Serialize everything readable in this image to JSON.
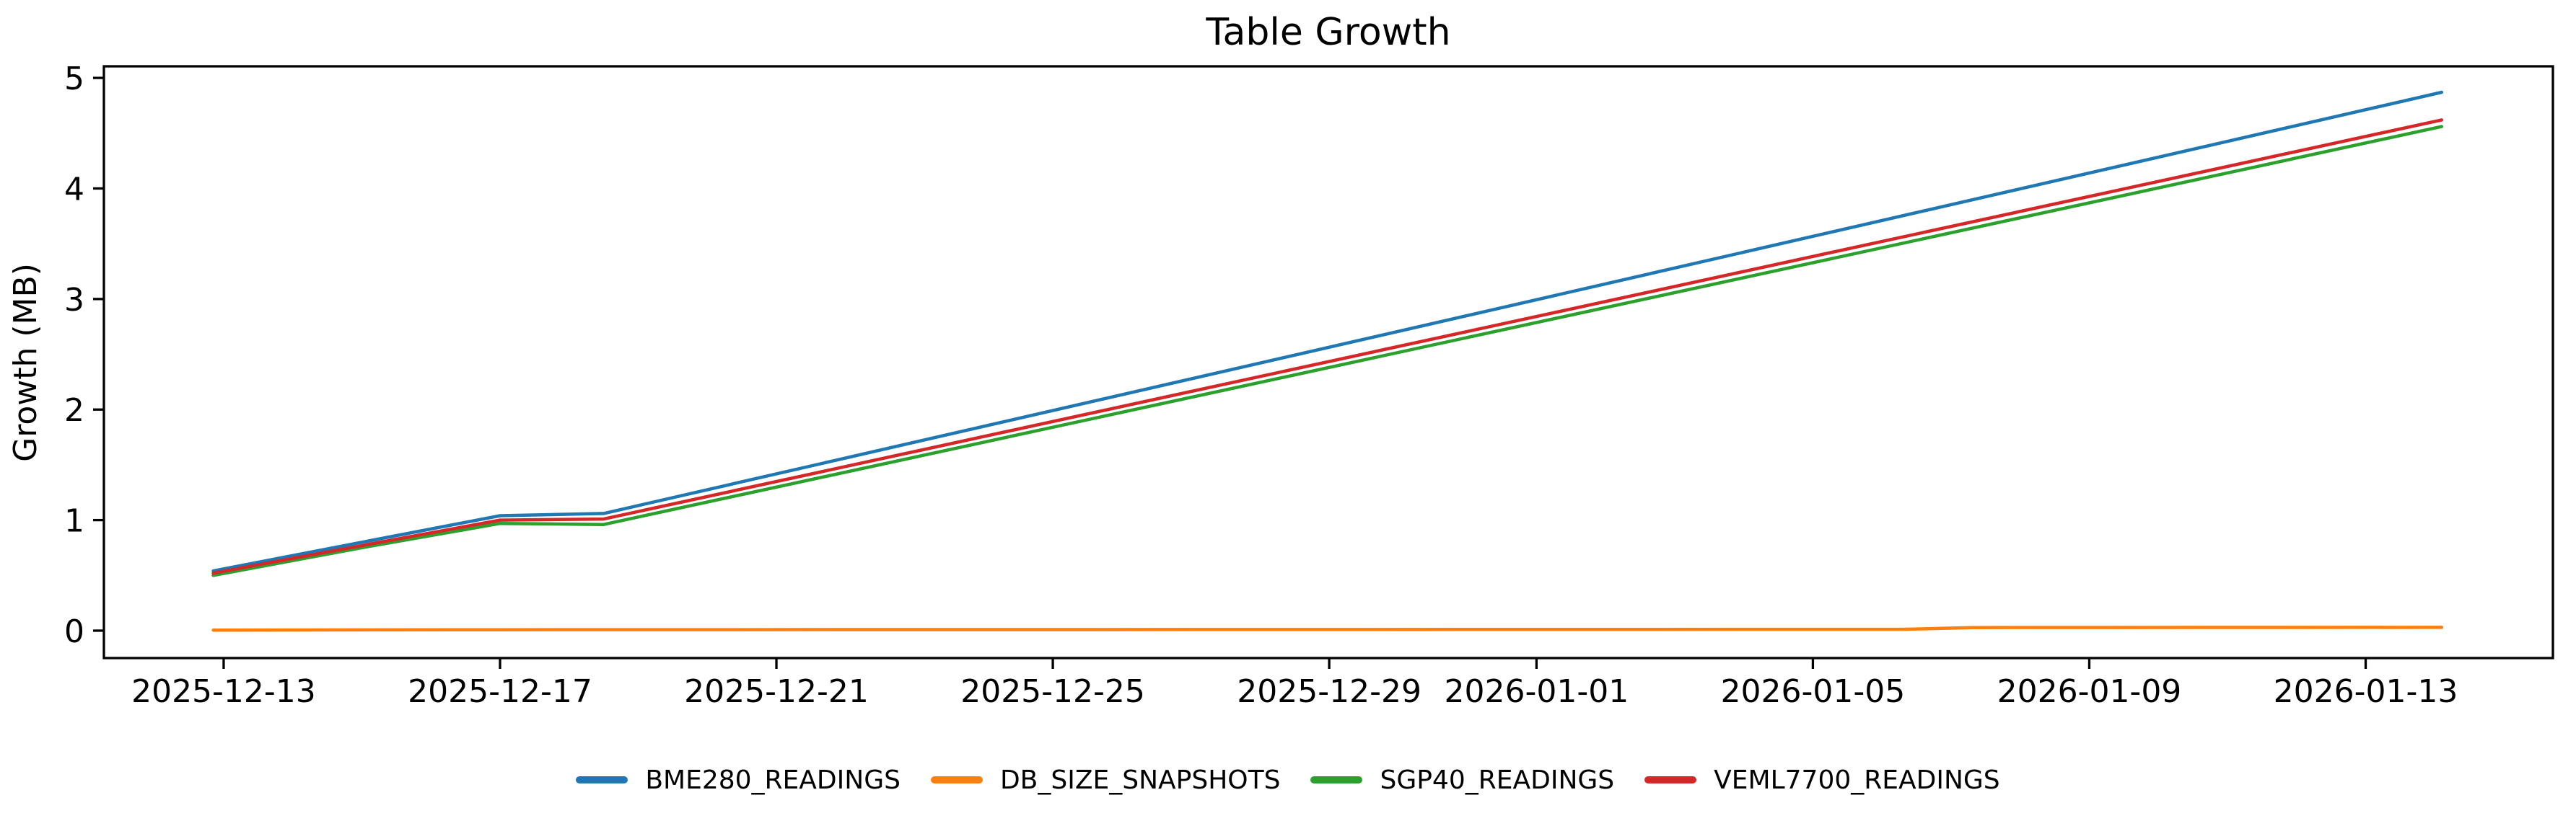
{
  "figure": {
    "background": "#ffffff",
    "text_color": "#000000"
  },
  "chart_data": {
    "type": "line",
    "title": "Table Growth",
    "xlabel": "",
    "ylabel": "Growth (MB)",
    "grid": false,
    "legend": {
      "position": "bottom-center",
      "entries": [
        "BME280_READINGS",
        "DB_SIZE_SNAPSHOTS",
        "SGP40_READINGS",
        "VEML7700_READINGS"
      ]
    },
    "x_axis": {
      "kind": "date",
      "points_format": "x values are days since 2025-12-13 00:00",
      "range_days": [
        -1.733,
        33.71
      ],
      "ticks": [
        {
          "t": 0,
          "label": "2025-12-13"
        },
        {
          "t": 4,
          "label": "2025-12-17"
        },
        {
          "t": 8,
          "label": "2025-12-21"
        },
        {
          "t": 12,
          "label": "2025-12-25"
        },
        {
          "t": 16,
          "label": "2025-12-29"
        },
        {
          "t": 19,
          "label": "2026-01-01"
        },
        {
          "t": 23,
          "label": "2026-01-05"
        },
        {
          "t": 27,
          "label": "2026-01-09"
        },
        {
          "t": 31,
          "label": "2026-01-13"
        }
      ]
    },
    "y_axis": {
      "range": [
        -0.248,
        5.105
      ],
      "ticks": [
        0,
        1,
        2,
        3,
        4,
        5
      ]
    },
    "series": [
      {
        "name": "BME280_READINGS",
        "color": "#1f77b4",
        "points": [
          [
            -0.15,
            0.54
          ],
          [
            2.0,
            0.8
          ],
          [
            4.0,
            1.04
          ],
          [
            5.5,
            1.06
          ],
          [
            32.1,
            4.87
          ]
        ]
      },
      {
        "name": "DB_SIZE_SNAPSHOTS",
        "color": "#ff7f0e",
        "points": [
          [
            -0.15,
            0.005
          ],
          [
            4.0,
            0.008
          ],
          [
            24.3,
            0.012
          ],
          [
            25.3,
            0.028
          ],
          [
            32.1,
            0.03
          ]
        ]
      },
      {
        "name": "SGP40_READINGS",
        "color": "#2ca02c",
        "points": [
          [
            -0.15,
            0.5
          ],
          [
            2.0,
            0.75
          ],
          [
            4.0,
            0.97
          ],
          [
            5.5,
            0.96
          ],
          [
            32.1,
            4.56
          ]
        ]
      },
      {
        "name": "VEML7700_READINGS",
        "color": "#d62728",
        "points": [
          [
            -0.15,
            0.52
          ],
          [
            2.0,
            0.77
          ],
          [
            4.0,
            1.0
          ],
          [
            5.5,
            1.01
          ],
          [
            32.1,
            4.62
          ]
        ]
      }
    ]
  }
}
